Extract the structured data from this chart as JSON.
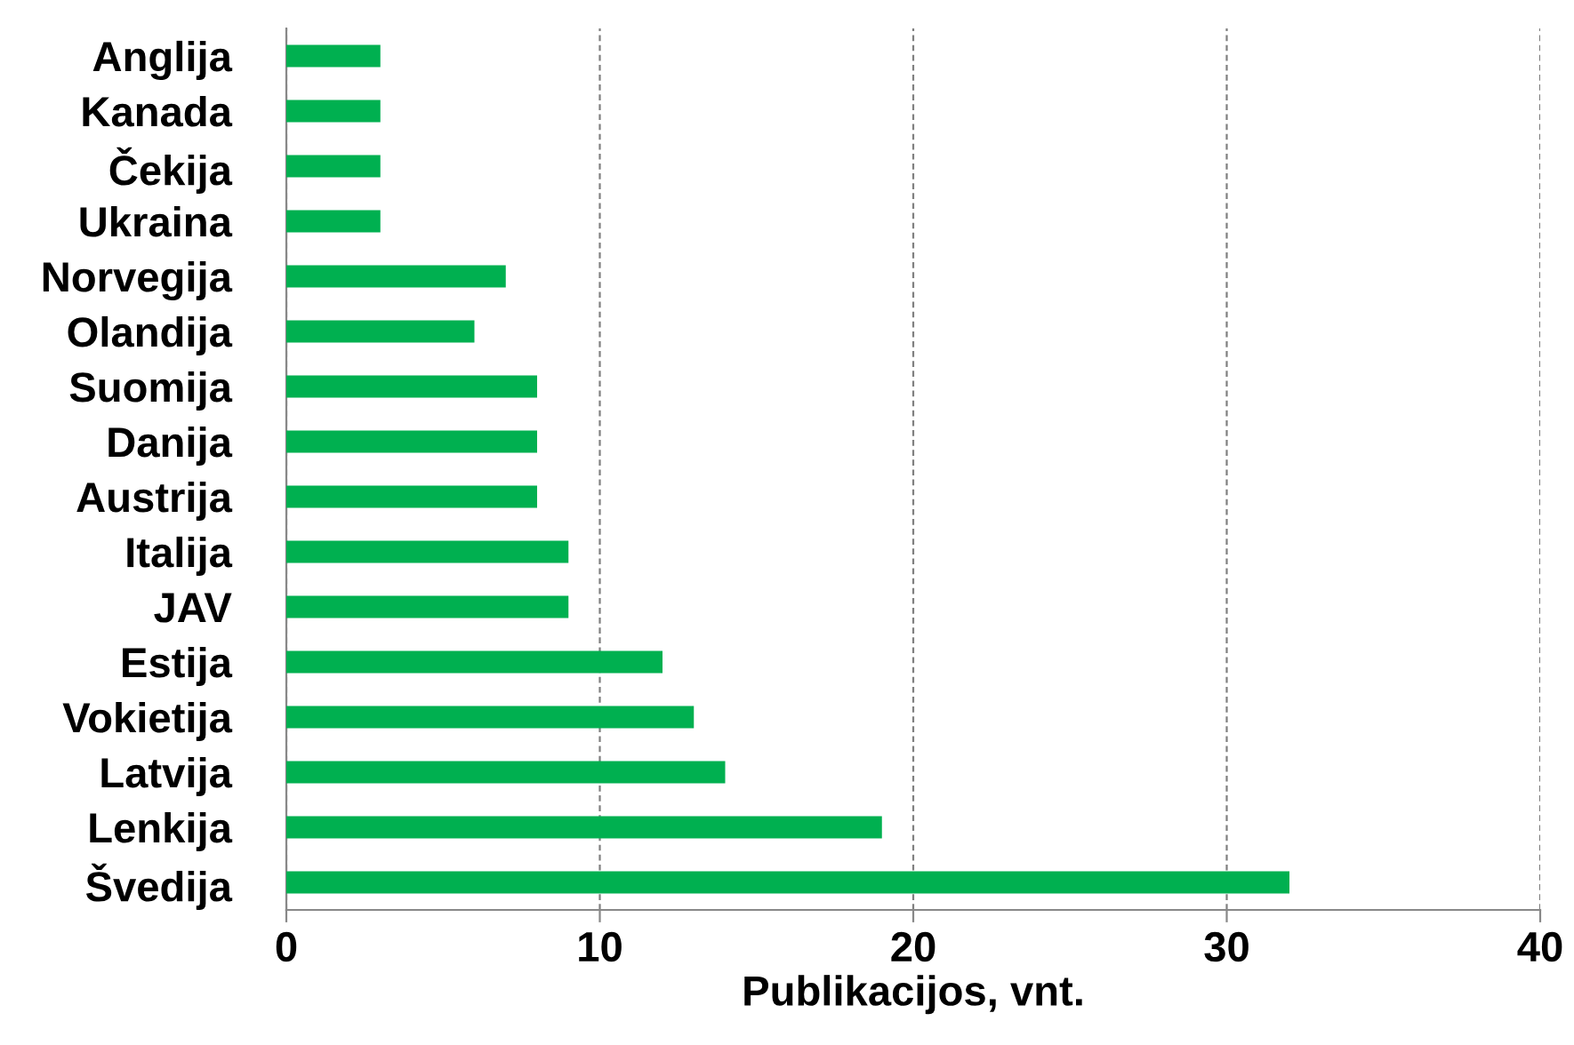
{
  "chart_data": {
    "type": "bar",
    "orientation": "horizontal",
    "xlabel": "Publikacijos, vnt.",
    "categories": [
      "Anglija",
      "Kanada",
      "Čekija",
      "Ukraina",
      "Norvegija",
      "Olandija",
      "Suomija",
      "Danija",
      "Austrija",
      "Italija",
      "JAV",
      "Estija",
      "Vokietija",
      "Latvija",
      "Lenkija",
      "Švedija"
    ],
    "values": [
      3,
      3,
      3,
      3,
      7,
      6,
      8,
      8,
      8,
      9,
      9,
      12,
      13,
      14,
      19,
      32
    ],
    "color": "#00b050",
    "xlim": [
      0,
      40
    ],
    "xticks": [
      0,
      10,
      20,
      30,
      40
    ],
    "grid": "x"
  }
}
